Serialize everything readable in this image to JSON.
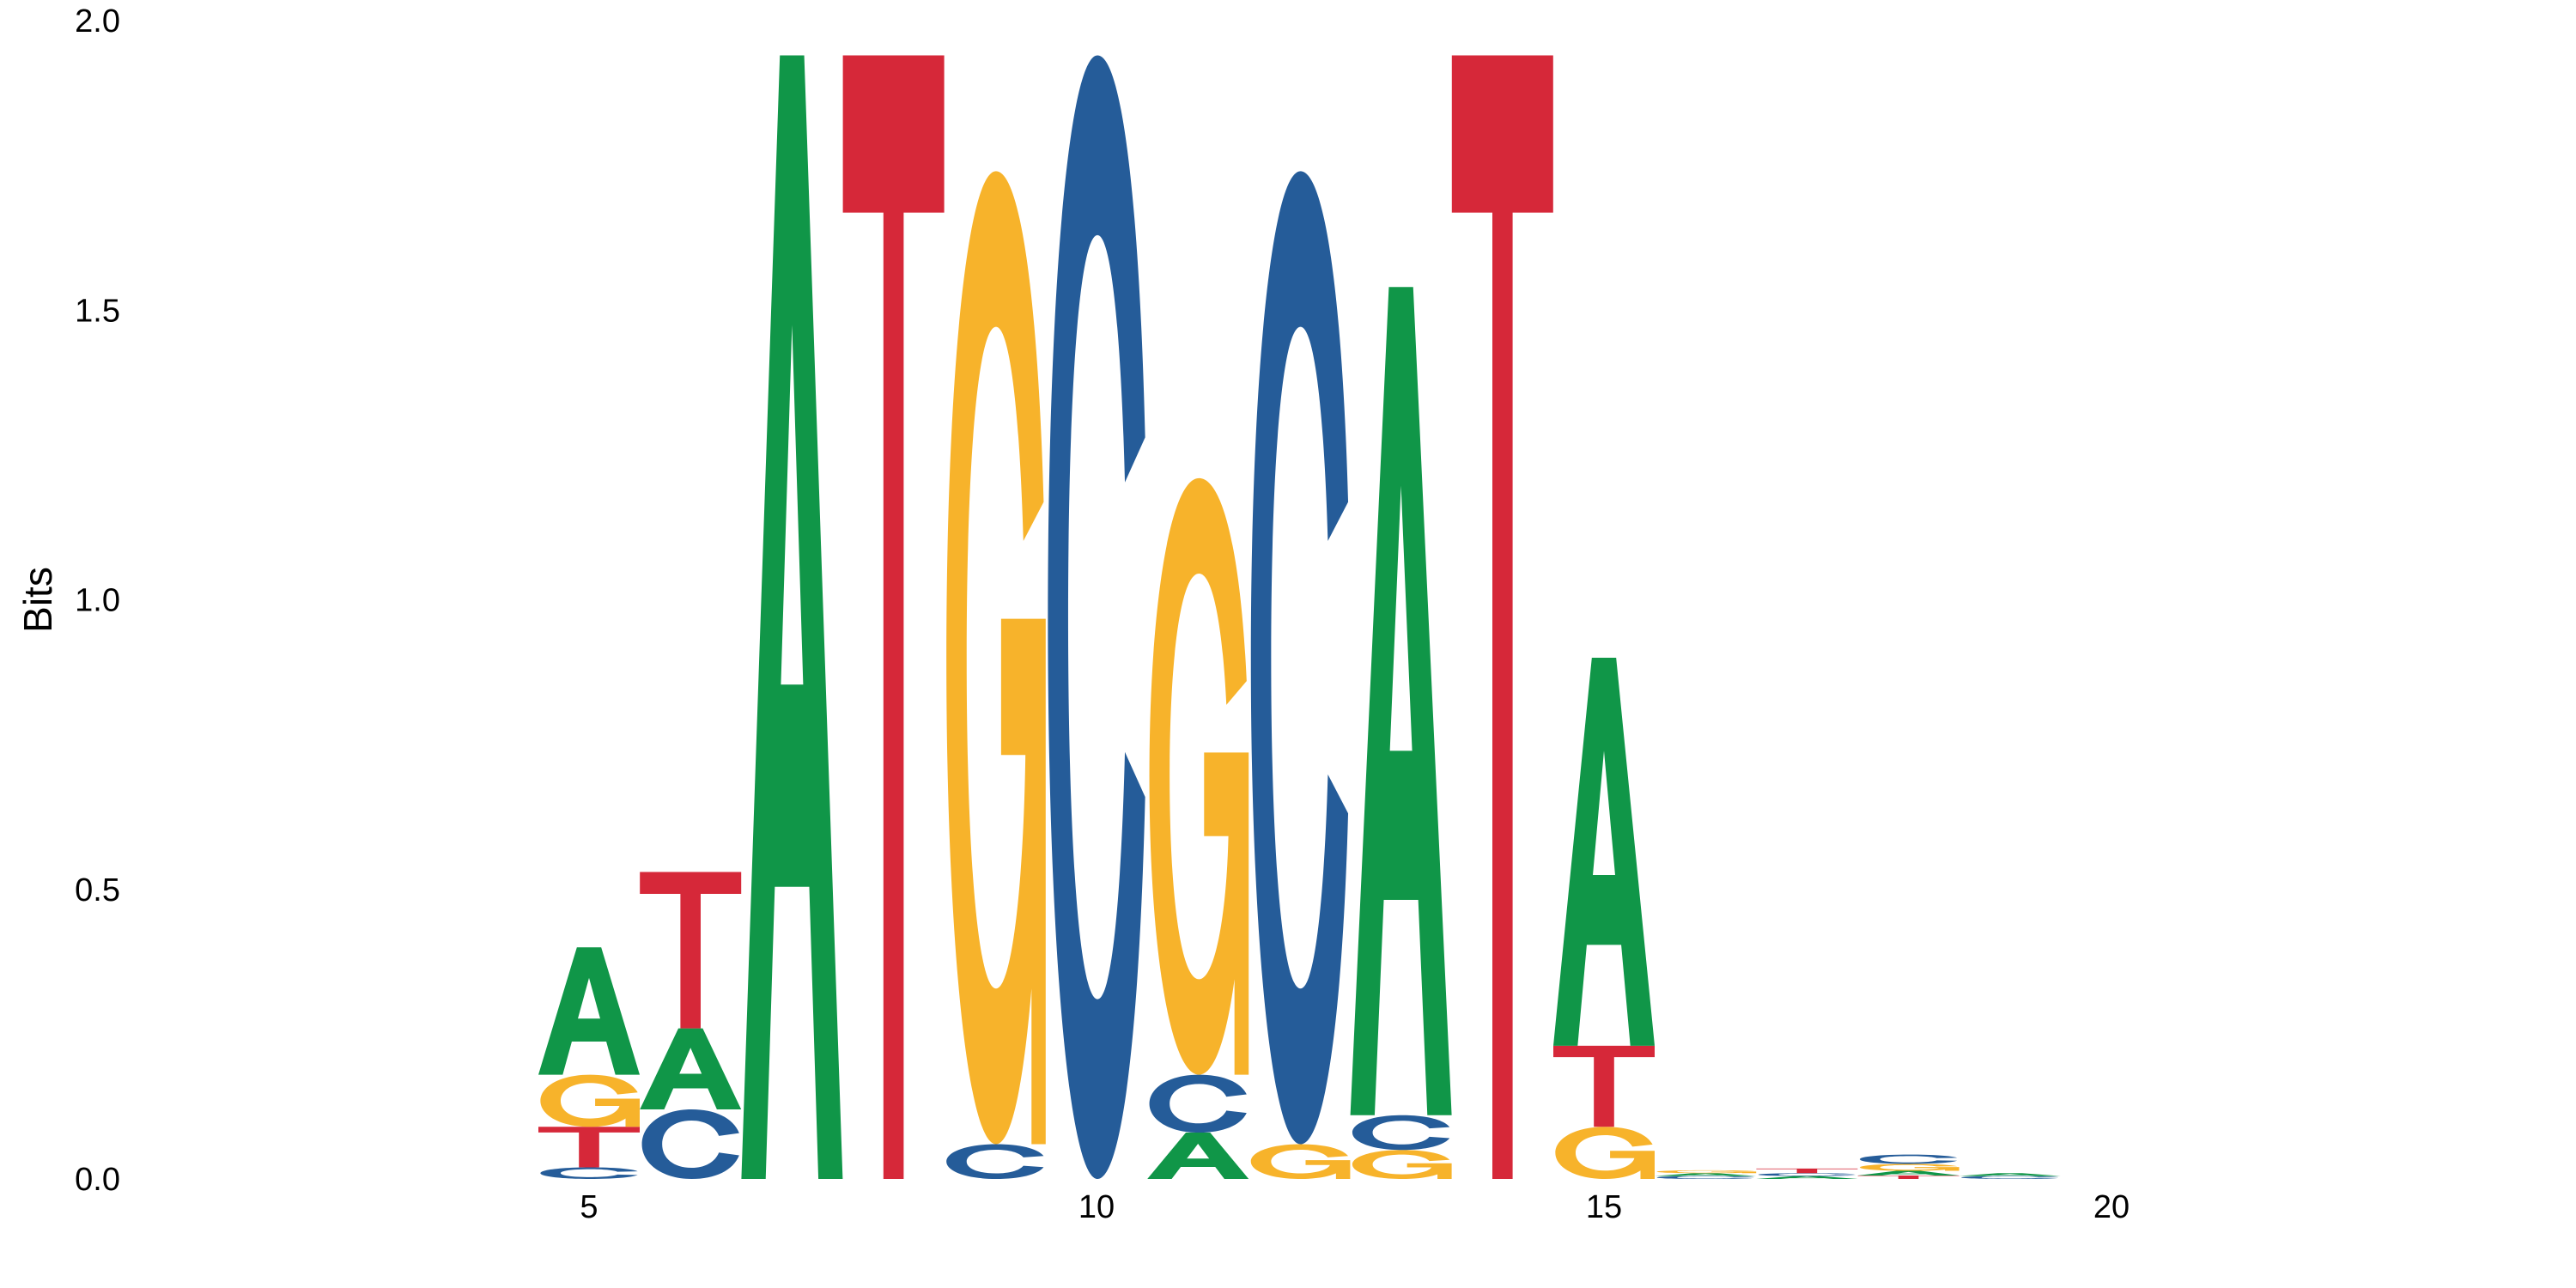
{
  "chart_data": {
    "type": "sequence-logo",
    "title": "",
    "xlabel": "",
    "ylabel": "Bits",
    "ylim": [
      0,
      2
    ],
    "xlim": [
      1,
      24
    ],
    "y_ticks": [
      "0.0",
      "0.5",
      "1.0",
      "1.5",
      "2.0"
    ],
    "x_ticks": [
      "5",
      "10",
      "15",
      "20"
    ],
    "grid": false,
    "colors": {
      "A": "#109648",
      "C": "#255C99",
      "G": "#F7B32B",
      "T": "#D62839"
    },
    "positions": [
      {
        "pos": 5,
        "letters": [
          {
            "base": "C",
            "bits": 0.02
          },
          {
            "base": "T",
            "bits": 0.07
          },
          {
            "base": "G",
            "bits": 0.09
          },
          {
            "base": "A",
            "bits": 0.22
          }
        ]
      },
      {
        "pos": 6,
        "letters": [
          {
            "base": "C",
            "bits": 0.12
          },
          {
            "base": "A",
            "bits": 0.14
          },
          {
            "base": "T",
            "bits": 0.27
          }
        ]
      },
      {
        "pos": 7,
        "letters": [
          {
            "base": "A",
            "bits": 1.94
          }
        ]
      },
      {
        "pos": 8,
        "letters": [
          {
            "base": "T",
            "bits": 1.94
          }
        ]
      },
      {
        "pos": 9,
        "letters": [
          {
            "base": "C",
            "bits": 0.06
          },
          {
            "base": "G",
            "bits": 1.68
          }
        ]
      },
      {
        "pos": 10,
        "letters": [
          {
            "base": "C",
            "bits": 1.94
          }
        ]
      },
      {
        "pos": 11,
        "letters": [
          {
            "base": "A",
            "bits": 0.08
          },
          {
            "base": "C",
            "bits": 0.1
          },
          {
            "base": "G",
            "bits": 1.03
          }
        ]
      },
      {
        "pos": 12,
        "letters": [
          {
            "base": "G",
            "bits": 0.06
          },
          {
            "base": "C",
            "bits": 1.68
          }
        ]
      },
      {
        "pos": 13,
        "letters": [
          {
            "base": "G",
            "bits": 0.05
          },
          {
            "base": "C",
            "bits": 0.06
          },
          {
            "base": "A",
            "bits": 1.43
          }
        ]
      },
      {
        "pos": 14,
        "letters": [
          {
            "base": "T",
            "bits": 1.94
          }
        ]
      },
      {
        "pos": 15,
        "letters": [
          {
            "base": "G",
            "bits": 0.09
          },
          {
            "base": "T",
            "bits": 0.14
          },
          {
            "base": "A",
            "bits": 0.67
          }
        ]
      },
      {
        "pos": 16,
        "letters": [
          {
            "base": "C",
            "bits": 0.005
          },
          {
            "base": "A",
            "bits": 0.005
          },
          {
            "base": "G",
            "bits": 0.005
          }
        ]
      },
      {
        "pos": 17,
        "letters": [
          {
            "base": "A",
            "bits": 0.005
          },
          {
            "base": "C",
            "bits": 0.005
          },
          {
            "base": "T",
            "bits": 0.008
          }
        ]
      },
      {
        "pos": 18,
        "letters": [
          {
            "base": "T",
            "bits": 0.006
          },
          {
            "base": "A",
            "bits": 0.008
          },
          {
            "base": "G",
            "bits": 0.012
          },
          {
            "base": "C",
            "bits": 0.016
          }
        ]
      },
      {
        "pos": 19,
        "letters": [
          {
            "base": "C",
            "bits": 0.005
          },
          {
            "base": "A",
            "bits": 0.005
          }
        ]
      }
    ]
  }
}
